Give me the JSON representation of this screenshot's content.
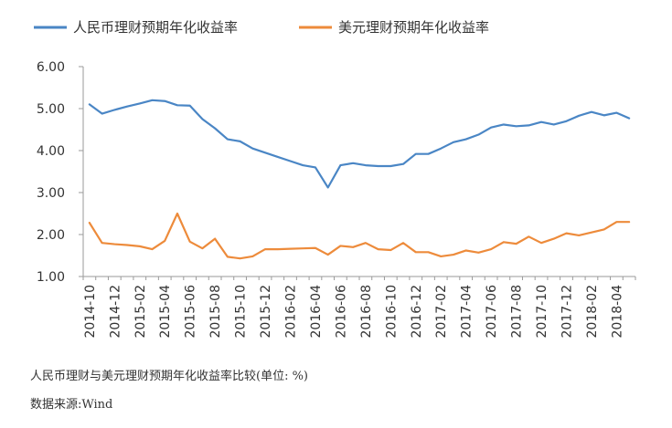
{
  "chart_data": {
    "type": "line",
    "title": "",
    "xlabel": "",
    "ylabel": "",
    "ylim": [
      1.0,
      6.0
    ],
    "yticks": [
      "1.00",
      "2.00",
      "3.00",
      "4.00",
      "5.00",
      "6.00"
    ],
    "grid": false,
    "legend_position": "top",
    "x": [
      "2014-10",
      "2014-11",
      "2014-12",
      "2015-01",
      "2015-02",
      "2015-03",
      "2015-04",
      "2015-05",
      "2015-06",
      "2015-07",
      "2015-08",
      "2015-09",
      "2015-10",
      "2015-11",
      "2015-12",
      "2016-01",
      "2016-02",
      "2016-03",
      "2016-04",
      "2016-05",
      "2016-06",
      "2016-07",
      "2016-08",
      "2016-09",
      "2016-10",
      "2016-11",
      "2016-12",
      "2017-01",
      "2017-02",
      "2017-03",
      "2017-04",
      "2017-05",
      "2017-06",
      "2017-07",
      "2017-08",
      "2017-09",
      "2017-10",
      "2017-11",
      "2017-12",
      "2018-01",
      "2018-02",
      "2018-03",
      "2018-04",
      "2018-05"
    ],
    "xtick_labels": [
      "2014-10",
      "2014-12",
      "2015-02",
      "2015-04",
      "2015-06",
      "2015-08",
      "2015-10",
      "2015-12",
      "2016-02",
      "2016-04",
      "2016-06",
      "2016-08",
      "2016-10",
      "2016-12",
      "2017-02",
      "2017-04",
      "2017-06",
      "2017-08",
      "2017-10",
      "2017-12",
      "2018-02",
      "2018-04"
    ],
    "series": [
      {
        "name": "人民币理财预期年化收益率",
        "color": "#4a86c5",
        "values": [
          5.1,
          4.88,
          4.97,
          5.05,
          5.12,
          5.2,
          5.18,
          5.08,
          5.07,
          4.75,
          4.53,
          4.27,
          4.22,
          4.05,
          3.95,
          3.85,
          3.75,
          3.65,
          3.6,
          3.12,
          3.65,
          3.7,
          3.65,
          3.63,
          3.63,
          3.68,
          3.92,
          3.92,
          4.05,
          4.2,
          4.27,
          4.38,
          4.55,
          4.62,
          4.58,
          4.6,
          4.68,
          4.62,
          4.7,
          4.83,
          4.92,
          4.84,
          4.9,
          4.77
        ]
      },
      {
        "name": "美元理财预期年化收益率",
        "color": "#ed8b3b",
        "values": [
          2.28,
          1.8,
          1.77,
          1.75,
          1.72,
          1.65,
          1.85,
          2.5,
          1.83,
          1.67,
          1.9,
          1.47,
          1.43,
          1.48,
          1.65,
          1.65,
          1.66,
          1.67,
          1.68,
          1.52,
          1.73,
          1.7,
          1.8,
          1.65,
          1.63,
          1.8,
          1.58,
          1.58,
          1.48,
          1.52,
          1.62,
          1.57,
          1.65,
          1.82,
          1.78,
          1.95,
          1.8,
          1.9,
          2.03,
          1.98,
          2.05,
          2.12,
          2.3,
          2.3
        ]
      }
    ]
  },
  "caption": {
    "title": "人民币理财与美元理财预期年化收益率比较(单位: %)",
    "source": "数据来源:Wind"
  }
}
